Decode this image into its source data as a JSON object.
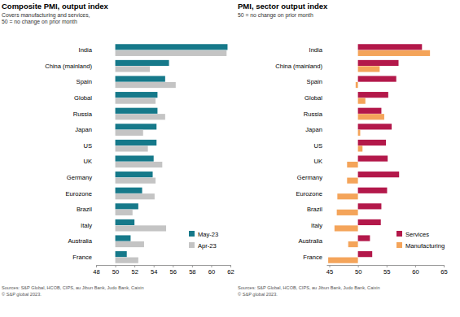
{
  "chart_data": [
    {
      "type": "bar",
      "orientation": "horizontal",
      "title": "Composite PMI, output index",
      "subtitle": [
        "Covers manufacturing and services,",
        "50 = no change on prior month"
      ],
      "source": [
        "Sources: S&P Global, HCOB, CIPS, au Jibun Bank, Judo Bank, Caixin",
        "© S&P global 2023."
      ],
      "categories": [
        "India",
        "China (mainland)",
        "Spain",
        "Global",
        "Russia",
        "Japan",
        "US",
        "UK",
        "Germany",
        "Eurozone",
        "Brazil",
        "Italy",
        "Australia",
        "France"
      ],
      "baseline": 50,
      "series": [
        {
          "name": "May-23",
          "color": "#16798a",
          "values": [
            61.7,
            55.6,
            55.2,
            54.4,
            54.4,
            54.3,
            54.3,
            54.0,
            53.9,
            52.8,
            52.4,
            52.0,
            51.6,
            51.2
          ]
        },
        {
          "name": "Apr-23",
          "color": "#c4c4c4",
          "values": [
            61.6,
            53.6,
            56.3,
            54.2,
            55.2,
            52.9,
            53.4,
            54.9,
            54.2,
            54.1,
            51.8,
            55.3,
            53.0,
            52.4
          ]
        }
      ],
      "xlim": [
        48,
        62
      ],
      "xticks": [
        48,
        50,
        52,
        54,
        56,
        58,
        60,
        62
      ],
      "legend": "lower right",
      "grid": false
    },
    {
      "type": "bar",
      "orientation": "horizontal",
      "title": "PMI, sector output index",
      "subtitle": [
        "50 = no change on prior month"
      ],
      "source": [
        "Sources: S&P Global, HCOB, CIPS, au Jibun Bank, Judo Bank, Caixin",
        "© S&P global 2023."
      ],
      "categories": [
        "India",
        "China (mainland)",
        "Spain",
        "Global",
        "Russia",
        "Japan",
        "US",
        "UK",
        "Germany",
        "Eurozone",
        "Brazil",
        "Italy",
        "Australia",
        "France"
      ],
      "baseline": 50,
      "series": [
        {
          "name": "Services",
          "color": "#b3184a",
          "values": [
            61.2,
            57.1,
            56.7,
            55.3,
            54.1,
            55.9,
            54.9,
            55.2,
            57.2,
            55.1,
            54.1,
            54.0,
            52.1,
            52.5
          ]
        },
        {
          "name": "Manufacturing",
          "color": "#f4a45a",
          "values": [
            62.6,
            53.8,
            49.6,
            51.3,
            54.6,
            50.4,
            50.8,
            48.1,
            48.1,
            46.4,
            46.3,
            45.9,
            48.3,
            44.8
          ]
        }
      ],
      "xlim": [
        44.5,
        65
      ],
      "xticks": [
        45,
        50,
        55,
        60,
        65
      ],
      "legend": "lower right",
      "grid": false
    }
  ]
}
